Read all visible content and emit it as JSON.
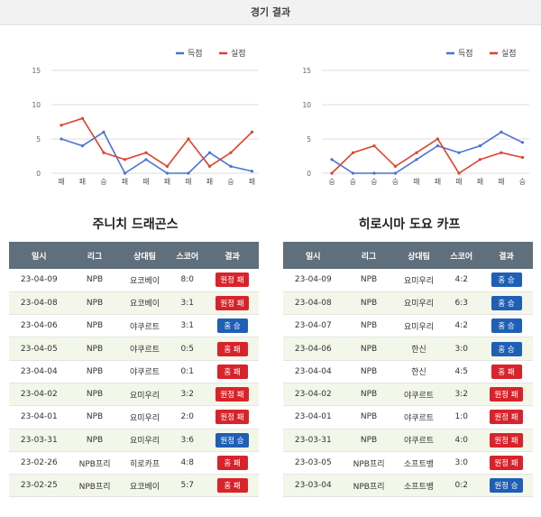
{
  "header": {
    "title": "경기 결과"
  },
  "legend": {
    "score": "득점",
    "conceded": "실점",
    "score_color": "#4a72d4",
    "conceded_color": "#e0402a"
  },
  "table_headers": [
    "일시",
    "리그",
    "상대팀",
    "스코어",
    "결과"
  ],
  "chart_data": [
    {
      "type": "line",
      "x": [
        "패",
        "패",
        "승",
        "패",
        "패",
        "패",
        "패",
        "패",
        "승",
        "패"
      ],
      "ylim": [
        0,
        15
      ],
      "yticks": [
        "15",
        "10",
        "5",
        "0"
      ],
      "series": [
        {
          "name": "득점",
          "values": [
            5,
            4,
            6,
            0,
            2,
            0,
            0,
            3,
            1,
            0.3
          ]
        },
        {
          "name": "실점",
          "values": [
            7,
            8,
            3,
            2,
            3,
            1,
            5,
            1,
            3,
            6
          ]
        }
      ]
    },
    {
      "type": "line",
      "x": [
        "승",
        "승",
        "승",
        "승",
        "패",
        "패",
        "패",
        "패",
        "패",
        "승"
      ],
      "ylim": [
        0,
        15
      ],
      "yticks": [
        "15",
        "10",
        "5",
        "0"
      ],
      "series": [
        {
          "name": "득점",
          "values": [
            2,
            0,
            0,
            0,
            2,
            4,
            3,
            4,
            6,
            4.5
          ]
        },
        {
          "name": "실점",
          "values": [
            0,
            3,
            4,
            1,
            3,
            5,
            0,
            2,
            3,
            2.3
          ]
        }
      ]
    }
  ],
  "teams": [
    {
      "name": "주니치 드래곤스",
      "rows": [
        {
          "date": "23-04-09",
          "league": "NPB",
          "opponent": "요코베이",
          "score": "8:0",
          "result": "원정 패",
          "type": "loss"
        },
        {
          "date": "23-04-08",
          "league": "NPB",
          "opponent": "요코베이",
          "score": "3:1",
          "result": "원정 패",
          "type": "loss"
        },
        {
          "date": "23-04-06",
          "league": "NPB",
          "opponent": "야쿠르트",
          "score": "3:1",
          "result": "홈 승",
          "type": "win"
        },
        {
          "date": "23-04-05",
          "league": "NPB",
          "opponent": "야쿠르트",
          "score": "0:5",
          "result": "홈 패",
          "type": "loss"
        },
        {
          "date": "23-04-04",
          "league": "NPB",
          "opponent": "야쿠르트",
          "score": "0:1",
          "result": "홈 패",
          "type": "loss"
        },
        {
          "date": "23-04-02",
          "league": "NPB",
          "opponent": "요미우리",
          "score": "3:2",
          "result": "원정 패",
          "type": "loss"
        },
        {
          "date": "23-04-01",
          "league": "NPB",
          "opponent": "요미우리",
          "score": "2:0",
          "result": "원정 패",
          "type": "loss"
        },
        {
          "date": "23-03-31",
          "league": "NPB",
          "opponent": "요미우리",
          "score": "3:6",
          "result": "원정 승",
          "type": "win"
        },
        {
          "date": "23-02-26",
          "league": "NPB프리",
          "opponent": "히로카프",
          "score": "4:8",
          "result": "홈 패",
          "type": "loss"
        },
        {
          "date": "23-02-25",
          "league": "NPB프리",
          "opponent": "요코베이",
          "score": "5:7",
          "result": "홈 패",
          "type": "loss"
        }
      ]
    },
    {
      "name": "히로시마 도요 카프",
      "rows": [
        {
          "date": "23-04-09",
          "league": "NPB",
          "opponent": "요미우리",
          "score": "4:2",
          "result": "홈 승",
          "type": "win"
        },
        {
          "date": "23-04-08",
          "league": "NPB",
          "opponent": "요미우리",
          "score": "6:3",
          "result": "홈 승",
          "type": "win"
        },
        {
          "date": "23-04-07",
          "league": "NPB",
          "opponent": "요미우리",
          "score": "4:2",
          "result": "홈 승",
          "type": "win"
        },
        {
          "date": "23-04-06",
          "league": "NPB",
          "opponent": "한신",
          "score": "3:0",
          "result": "홈 승",
          "type": "win"
        },
        {
          "date": "23-04-04",
          "league": "NPB",
          "opponent": "한신",
          "score": "4:5",
          "result": "홈 패",
          "type": "loss"
        },
        {
          "date": "23-04-02",
          "league": "NPB",
          "opponent": "야쿠르트",
          "score": "3:2",
          "result": "원정 패",
          "type": "loss"
        },
        {
          "date": "23-04-01",
          "league": "NPB",
          "opponent": "야쿠르트",
          "score": "1:0",
          "result": "원정 패",
          "type": "loss"
        },
        {
          "date": "23-03-31",
          "league": "NPB",
          "opponent": "야쿠르트",
          "score": "4:0",
          "result": "원정 패",
          "type": "loss"
        },
        {
          "date": "23-03-05",
          "league": "NPB프리",
          "opponent": "소프트뱅",
          "score": "3:0",
          "result": "원정 패",
          "type": "loss"
        },
        {
          "date": "23-03-04",
          "league": "NPB프리",
          "opponent": "소프트뱅",
          "score": "0:2",
          "result": "원정 승",
          "type": "win"
        }
      ]
    }
  ]
}
